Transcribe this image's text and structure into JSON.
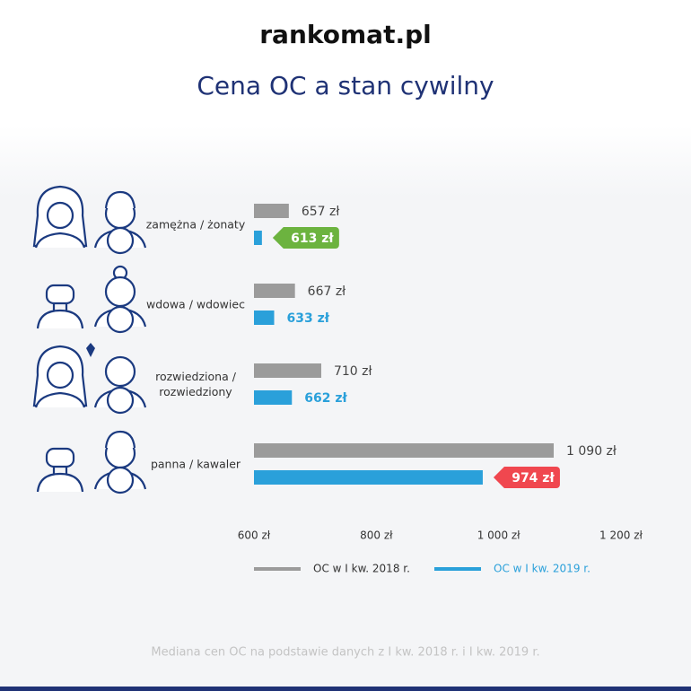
{
  "logo": "rankomat.pl",
  "chart_data": {
    "type": "hbar",
    "title": "Cena OC a stan cywilny",
    "categories": [
      "zamężna / żonaty",
      "wdowa / wdowiec",
      "rozwiedziona / rozwiedziony",
      "panna / kawaler"
    ],
    "series": [
      {
        "name": "OC w I kw. 2018 r.",
        "color": "#9b9b9b",
        "values": [
          657,
          667,
          710,
          1090
        ],
        "value_labels": [
          "657 zł",
          "667 zł",
          "710 zł",
          "1 090 zł"
        ]
      },
      {
        "name": "OC w I kw. 2019 r.",
        "color": "#2aa0da",
        "values": [
          613,
          633,
          662,
          974
        ],
        "value_labels": [
          "613 zł",
          "633 zł",
          "662 zł",
          "974 zł"
        ],
        "highlights": [
          {
            "index": 0,
            "color": "#6cb33f"
          },
          {
            "index": 3,
            "color": "#f0474f"
          }
        ]
      }
    ],
    "xlim": [
      600,
      1200
    ],
    "xticks": [
      {
        "value": 600,
        "label": "600 zł"
      },
      {
        "value": 800,
        "label": "800 zł"
      },
      {
        "value": 1000,
        "label": "1 000 zł"
      },
      {
        "value": 1200,
        "label": "1 200 zł"
      }
    ],
    "footnote": "Mediana cen OC na podstawie danych z I kw. 2018 r. i I kw. 2019 r."
  }
}
